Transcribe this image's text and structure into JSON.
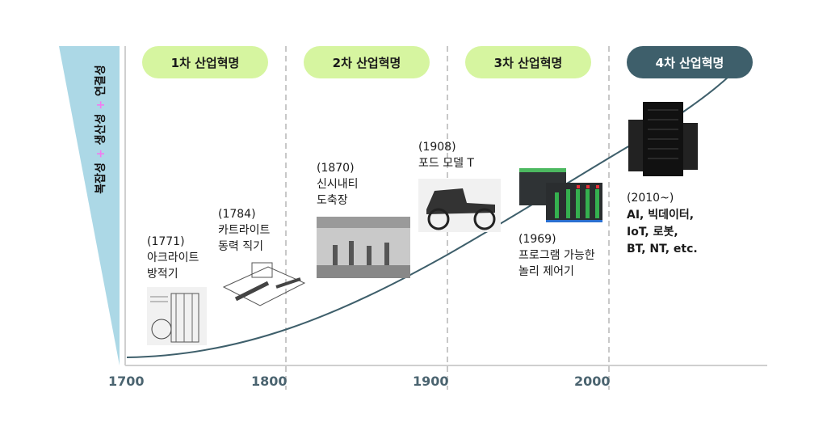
{
  "axis_title": {
    "part1": "복잡성",
    "part2": "생산성",
    "part3": "연결성",
    "plus": "+"
  },
  "ticks": [
    "1700",
    "1800",
    "1900",
    "2000"
  ],
  "eras": [
    {
      "label": "1차 산업혁명"
    },
    {
      "label": "2차 산업혁명"
    },
    {
      "label": "3차 산업혁명"
    },
    {
      "label": "4차 산업혁명"
    }
  ],
  "events": [
    {
      "year": "(1771)",
      "line1": "아크라이트",
      "line2": "방적기",
      "image": "spinning-frame"
    },
    {
      "year": "(1784)",
      "line1": "카트라이트",
      "line2": "동력 직기",
      "image": "power-loom"
    },
    {
      "year": "(1870)",
      "line1": "신시내티",
      "line2": "도축장",
      "image": "slaughterhouse"
    },
    {
      "year": "(1908)",
      "line1": "포드 모델 T",
      "image": "ford-model-t"
    },
    {
      "year": "(1969)",
      "line1": "프로그램 가능한",
      "line2": "놀리 제어기",
      "image": "plc"
    },
    {
      "year": "(2010~)",
      "line1": "AI, 빅데이터,",
      "line2": "IoT, 로봇,",
      "line3": "BT, NT, etc.",
      "image": "servers"
    }
  ],
  "colors": {
    "pill": "#d6f5a0",
    "pill_active": "#3e5f6b",
    "curve": "#3e5f6b",
    "wedge": "#acd8e6",
    "plus": "#f27bf0",
    "tick": "#4b6470"
  }
}
